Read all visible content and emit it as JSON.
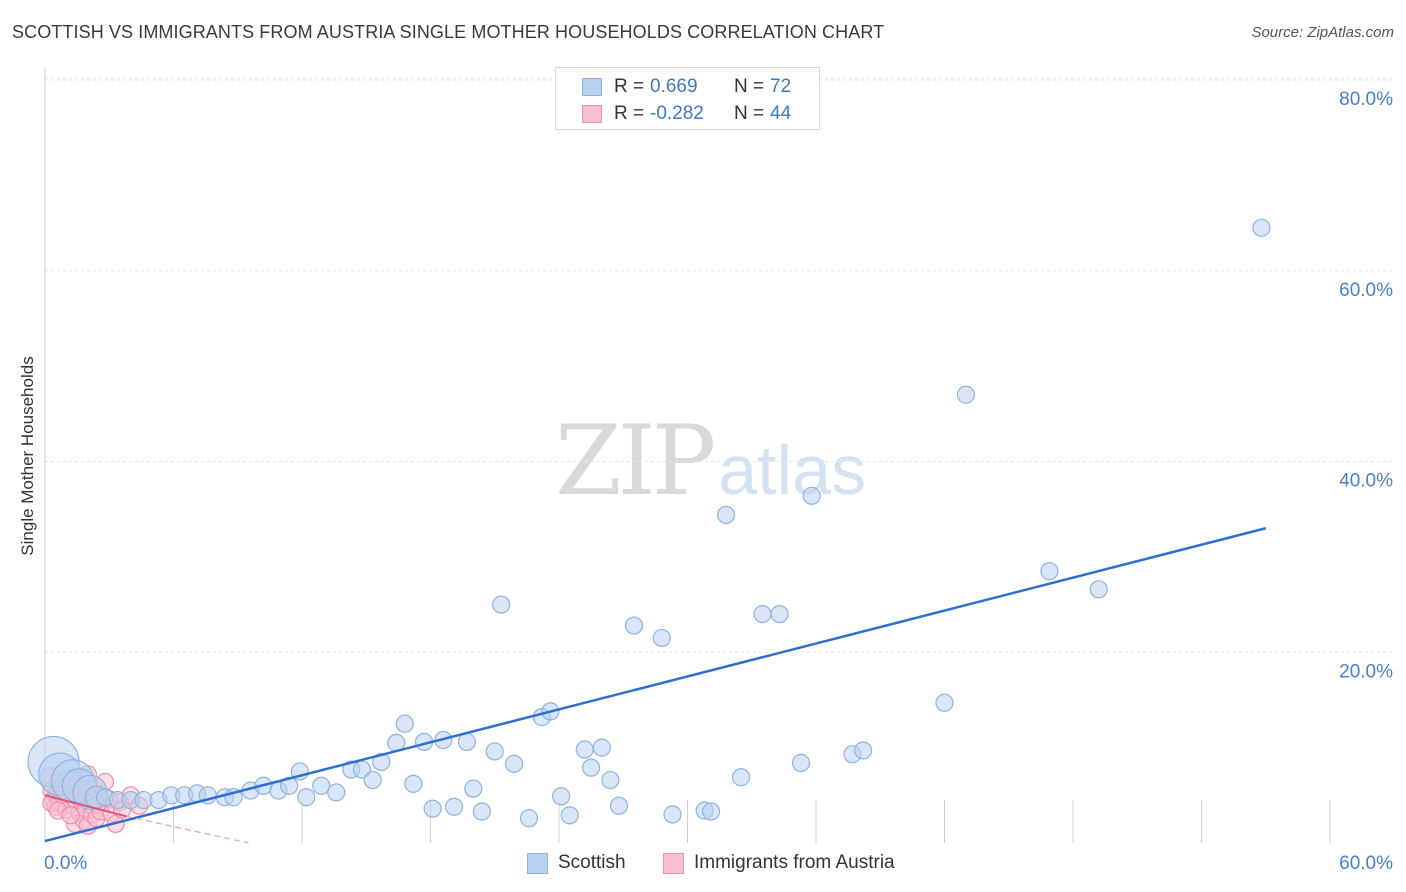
{
  "header": {
    "title": "SCOTTISH VS IMMIGRANTS FROM AUSTRIA SINGLE MOTHER HOUSEHOLDS CORRELATION CHART",
    "source": "Source: ZipAtlas.com"
  },
  "watermark": {
    "zip": "ZIP",
    "atlas": "atlas"
  },
  "legend": {
    "rows": [
      {
        "r_label": "R =",
        "r_value": "0.669",
        "n_label": "N =",
        "n_value": "72"
      },
      {
        "r_label": "R =",
        "r_value": "-0.282",
        "n_label": "N =",
        "n_value": "44"
      }
    ]
  },
  "colors": {
    "scottish_fill": "#b8d2f0",
    "scottish_stroke": "#8fb3e0",
    "scottish_line": "#2f6fcd",
    "austria_fill": "#f7bfd0",
    "austria_stroke": "#ee8fab",
    "austria_line": "#e0507a",
    "grid": "#e6e6e6",
    "tick_label": "#4a7fcb"
  },
  "chart_data": {
    "type": "scatter",
    "title": "SCOTTISH VS IMMIGRANTS FROM AUSTRIA SINGLE MOTHER HOUSEHOLDS CORRELATION CHART",
    "xlabel": "",
    "ylabel": "Single Mother Households",
    "xlim": [
      0,
      60
    ],
    "ylim": [
      0,
      80
    ],
    "x_tick_labels": [
      "0.0%",
      "60.0%"
    ],
    "y_ticks": [
      {
        "value": 80,
        "label": "80.0%"
      },
      {
        "value": 60,
        "label": "60.0%"
      },
      {
        "value": 40,
        "label": "40.0%"
      },
      {
        "value": 20,
        "label": "20.0%"
      }
    ],
    "legend_position": "bottom-center",
    "series": [
      {
        "name": "Scottish",
        "R": 0.669,
        "N": 72,
        "trend": {
          "x": [
            0,
            57
          ],
          "y": [
            0.2,
            33.0
          ]
        },
        "points": [
          {
            "x": 0.4,
            "y": 8.5,
            "s": 3
          },
          {
            "x": 0.7,
            "y": 7.2,
            "s": 2.5
          },
          {
            "x": 1.3,
            "y": 6.5,
            "s": 2.5
          },
          {
            "x": 1.6,
            "y": 6.0,
            "s": 2
          },
          {
            "x": 2.1,
            "y": 5.3,
            "s": 2
          },
          {
            "x": 2.4,
            "y": 4.8,
            "s": 1.3
          },
          {
            "x": 2.8,
            "y": 4.8,
            "s": 1
          },
          {
            "x": 3.4,
            "y": 4.5,
            "s": 1
          },
          {
            "x": 4.0,
            "y": 4.5,
            "s": 1
          },
          {
            "x": 4.6,
            "y": 4.5,
            "s": 1
          },
          {
            "x": 5.3,
            "y": 4.5,
            "s": 1
          },
          {
            "x": 5.9,
            "y": 5.0,
            "s": 1
          },
          {
            "x": 6.5,
            "y": 5.0,
            "s": 1
          },
          {
            "x": 7.1,
            "y": 5.2,
            "s": 1
          },
          {
            "x": 7.6,
            "y": 5.0,
            "s": 1
          },
          {
            "x": 8.4,
            "y": 4.8,
            "s": 1
          },
          {
            "x": 8.8,
            "y": 4.8,
            "s": 1
          },
          {
            "x": 9.6,
            "y": 5.5,
            "s": 1
          },
          {
            "x": 10.2,
            "y": 6.0,
            "s": 1
          },
          {
            "x": 10.9,
            "y": 5.5,
            "s": 1
          },
          {
            "x": 11.4,
            "y": 6.0,
            "s": 1
          },
          {
            "x": 11.9,
            "y": 7.5,
            "s": 1
          },
          {
            "x": 12.2,
            "y": 4.8,
            "s": 1
          },
          {
            "x": 12.9,
            "y": 6.0,
            "s": 1
          },
          {
            "x": 13.6,
            "y": 5.3,
            "s": 1
          },
          {
            "x": 14.3,
            "y": 7.7,
            "s": 1
          },
          {
            "x": 14.8,
            "y": 7.7,
            "s": 1
          },
          {
            "x": 15.3,
            "y": 6.6,
            "s": 1
          },
          {
            "x": 15.7,
            "y": 8.5,
            "s": 1
          },
          {
            "x": 16.4,
            "y": 10.5,
            "s": 1
          },
          {
            "x": 16.8,
            "y": 12.5,
            "s": 1
          },
          {
            "x": 17.2,
            "y": 6.2,
            "s": 1
          },
          {
            "x": 17.7,
            "y": 10.6,
            "s": 1
          },
          {
            "x": 18.1,
            "y": 3.6,
            "s": 1
          },
          {
            "x": 18.6,
            "y": 10.8,
            "s": 1
          },
          {
            "x": 19.1,
            "y": 3.8,
            "s": 1
          },
          {
            "x": 19.7,
            "y": 10.6,
            "s": 1
          },
          {
            "x": 20.0,
            "y": 5.7,
            "s": 1
          },
          {
            "x": 20.4,
            "y": 3.3,
            "s": 1
          },
          {
            "x": 21.0,
            "y": 9.6,
            "s": 1
          },
          {
            "x": 21.3,
            "y": 25.0,
            "s": 1
          },
          {
            "x": 21.9,
            "y": 8.3,
            "s": 1
          },
          {
            "x": 22.6,
            "y": 2.6,
            "s": 1
          },
          {
            "x": 23.2,
            "y": 13.2,
            "s": 1
          },
          {
            "x": 23.6,
            "y": 13.8,
            "s": 1
          },
          {
            "x": 24.1,
            "y": 4.9,
            "s": 1
          },
          {
            "x": 24.5,
            "y": 2.9,
            "s": 1
          },
          {
            "x": 25.2,
            "y": 9.8,
            "s": 1
          },
          {
            "x": 25.5,
            "y": 7.9,
            "s": 1
          },
          {
            "x": 26.0,
            "y": 10.0,
            "s": 1
          },
          {
            "x": 26.4,
            "y": 6.6,
            "s": 1
          },
          {
            "x": 26.8,
            "y": 3.9,
            "s": 1
          },
          {
            "x": 27.5,
            "y": 22.8,
            "s": 1
          },
          {
            "x": 28.8,
            "y": 21.5,
            "s": 1
          },
          {
            "x": 29.3,
            "y": 3.0,
            "s": 1
          },
          {
            "x": 30.8,
            "y": 3.4,
            "s": 1
          },
          {
            "x": 31.1,
            "y": 3.3,
            "s": 1
          },
          {
            "x": 31.8,
            "y": 34.4,
            "s": 1
          },
          {
            "x": 32.5,
            "y": 6.9,
            "s": 1
          },
          {
            "x": 33.5,
            "y": 24.0,
            "s": 1
          },
          {
            "x": 34.3,
            "y": 24.0,
            "s": 1
          },
          {
            "x": 35.3,
            "y": 8.4,
            "s": 1
          },
          {
            "x": 35.8,
            "y": 36.4,
            "s": 1
          },
          {
            "x": 37.7,
            "y": 9.3,
            "s": 1
          },
          {
            "x": 38.2,
            "y": 9.7,
            "s": 1
          },
          {
            "x": 42.0,
            "y": 14.7,
            "s": 1
          },
          {
            "x": 43.0,
            "y": 47.0,
            "s": 1
          },
          {
            "x": 46.9,
            "y": 28.5,
            "s": 1
          },
          {
            "x": 49.2,
            "y": 26.6,
            "s": 1
          },
          {
            "x": 56.8,
            "y": 64.5,
            "s": 1
          }
        ]
      },
      {
        "name": "Immigrants from Austria",
        "R": -0.282,
        "N": 44,
        "trend": {
          "x": [
            0,
            3.8
          ],
          "y": [
            5.0,
            2.8
          ]
        },
        "trend_dashed": {
          "x": [
            3.8,
            9.5
          ],
          "y": [
            2.8,
            0.0
          ]
        },
        "points": [
          {
            "x": 0.2,
            "y": 7.0,
            "s": 1
          },
          {
            "x": 0.3,
            "y": 5.5,
            "s": 1
          },
          {
            "x": 0.4,
            "y": 4.5,
            "s": 1
          },
          {
            "x": 0.5,
            "y": 5.0,
            "s": 1
          },
          {
            "x": 0.5,
            "y": 3.8,
            "s": 1
          },
          {
            "x": 0.6,
            "y": 6.3,
            "s": 1
          },
          {
            "x": 0.7,
            "y": 4.2,
            "s": 1
          },
          {
            "x": 0.8,
            "y": 5.8,
            "s": 1
          },
          {
            "x": 0.9,
            "y": 4.8,
            "s": 1
          },
          {
            "x": 1.0,
            "y": 3.5,
            "s": 1
          },
          {
            "x": 1.0,
            "y": 6.8,
            "s": 1
          },
          {
            "x": 1.1,
            "y": 5.2,
            "s": 1
          },
          {
            "x": 1.2,
            "y": 4.0,
            "s": 1
          },
          {
            "x": 1.3,
            "y": 6.0,
            "s": 1
          },
          {
            "x": 1.4,
            "y": 4.6,
            "s": 1
          },
          {
            "x": 1.4,
            "y": 2.0,
            "s": 1
          },
          {
            "x": 1.5,
            "y": 5.5,
            "s": 1
          },
          {
            "x": 1.6,
            "y": 3.2,
            "s": 1
          },
          {
            "x": 1.7,
            "y": 4.4,
            "s": 1
          },
          {
            "x": 1.7,
            "y": 6.6,
            "s": 1
          },
          {
            "x": 1.8,
            "y": 2.4,
            "s": 1
          },
          {
            "x": 1.9,
            "y": 3.6,
            "s": 1
          },
          {
            "x": 2.0,
            "y": 1.8,
            "s": 1
          },
          {
            "x": 2.0,
            "y": 7.2,
            "s": 1
          },
          {
            "x": 2.1,
            "y": 4.9,
            "s": 1
          },
          {
            "x": 2.2,
            "y": 3.0,
            "s": 1
          },
          {
            "x": 2.3,
            "y": 5.6,
            "s": 1
          },
          {
            "x": 2.4,
            "y": 2.6,
            "s": 1
          },
          {
            "x": 0.3,
            "y": 4.2,
            "s": 1
          },
          {
            "x": 0.6,
            "y": 3.4,
            "s": 1
          },
          {
            "x": 0.8,
            "y": 5.1,
            "s": 1
          },
          {
            "x": 1.2,
            "y": 2.9,
            "s": 1
          },
          {
            "x": 1.5,
            "y": 6.2,
            "s": 1
          },
          {
            "x": 1.9,
            "y": 5.3,
            "s": 1
          },
          {
            "x": 2.5,
            "y": 4.0,
            "s": 1
          },
          {
            "x": 2.6,
            "y": 3.3,
            "s": 1
          },
          {
            "x": 2.8,
            "y": 6.4,
            "s": 1
          },
          {
            "x": 3.0,
            "y": 4.6,
            "s": 1
          },
          {
            "x": 3.1,
            "y": 3.1,
            "s": 1
          },
          {
            "x": 3.3,
            "y": 2.0,
            "s": 1
          },
          {
            "x": 3.5,
            "y": 4.3,
            "s": 1
          },
          {
            "x": 3.6,
            "y": 3.5,
            "s": 1
          },
          {
            "x": 4.0,
            "y": 5.0,
            "s": 1
          },
          {
            "x": 4.4,
            "y": 3.9,
            "s": 1
          }
        ]
      }
    ]
  },
  "bottom_legend": {
    "items": [
      {
        "label": "Scottish"
      },
      {
        "label": "Immigrants from Austria"
      }
    ]
  }
}
